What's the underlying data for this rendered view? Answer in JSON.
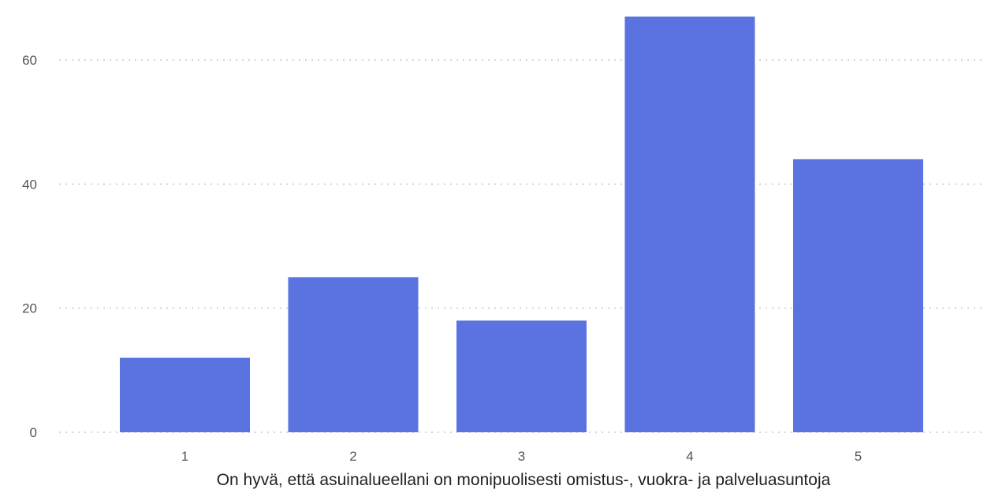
{
  "chart_data": {
    "type": "bar",
    "categories": [
      "1",
      "2",
      "3",
      "4",
      "5"
    ],
    "values": [
      12,
      25,
      18,
      67,
      44
    ],
    "title": "",
    "xlabel": "On hyvä, että asuinalueellani on monipuolisesti omistus-, vuokra- ja palveluasuntoja",
    "ylabel": "",
    "ylim": [
      0,
      67
    ],
    "yticks": [
      0,
      20,
      40,
      60
    ],
    "grid": true,
    "bar_color": "#5b73e1"
  }
}
